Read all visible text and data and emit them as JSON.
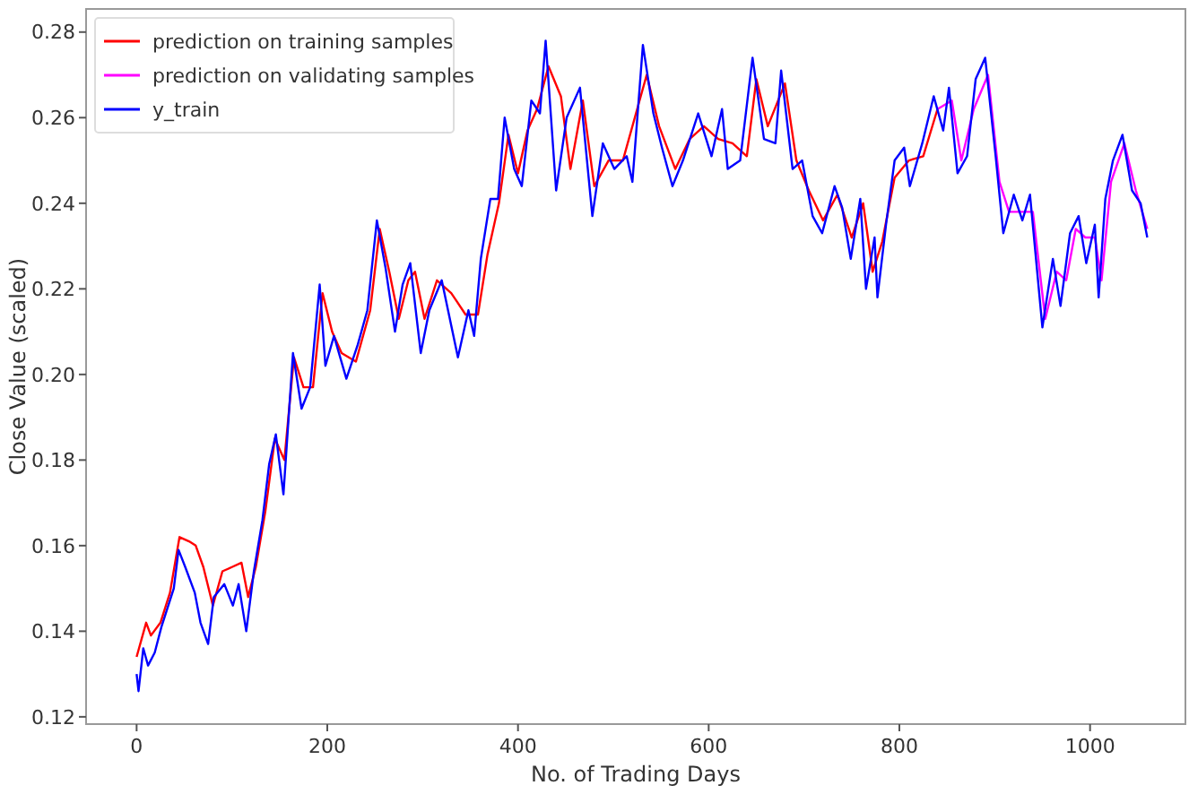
{
  "chart_data": {
    "type": "line",
    "xlabel": "No. of Trading Days",
    "ylabel": "Close Value (scaled)",
    "xlim": [
      -53,
      1100
    ],
    "ylim": [
      0.1183,
      0.2854
    ],
    "xticks": [
      0,
      200,
      400,
      600,
      800,
      1000
    ],
    "yticks": [
      {
        "value": 0.12,
        "label": "0.12"
      },
      {
        "value": 0.14,
        "label": "0.14"
      },
      {
        "value": 0.16,
        "label": "0.16"
      },
      {
        "value": 0.18,
        "label": "0.18"
      },
      {
        "value": 0.2,
        "label": "0.20"
      },
      {
        "value": 0.22,
        "label": "0.22"
      },
      {
        "value": 0.24,
        "label": "0.24"
      },
      {
        "value": 0.26,
        "label": "0.26"
      },
      {
        "value": 0.28,
        "label": "0.28"
      }
    ],
    "legend": "top left",
    "grid": false,
    "series": [
      {
        "name": "prediction on training samples",
        "color": "#ff0000",
        "x": [
          0,
          10,
          15,
          25,
          35,
          45,
          55,
          62,
          70,
          80,
          90,
          100,
          110,
          117,
          125,
          135,
          145,
          155,
          165,
          175,
          185,
          195,
          205,
          215,
          230,
          245,
          255,
          265,
          275,
          285,
          292,
          302,
          315,
          330,
          345,
          358,
          368,
          380,
          390,
          400,
          410,
          420,
          432,
          445,
          455,
          468,
          480,
          495,
          510,
          525,
          535,
          548,
          565,
          580,
          595,
          610,
          625,
          640,
          650,
          662,
          680,
          692,
          705,
          720,
          735,
          750,
          762,
          772,
          782,
          795,
          810,
          825,
          840
        ],
        "values": [
          0.134,
          0.142,
          0.139,
          0.142,
          0.149,
          0.162,
          0.161,
          0.16,
          0.155,
          0.146,
          0.154,
          0.155,
          0.156,
          0.148,
          0.155,
          0.168,
          0.185,
          0.18,
          0.204,
          0.197,
          0.197,
          0.219,
          0.21,
          0.205,
          0.203,
          0.215,
          0.234,
          0.224,
          0.213,
          0.222,
          0.224,
          0.213,
          0.222,
          0.219,
          0.214,
          0.214,
          0.228,
          0.24,
          0.256,
          0.247,
          0.257,
          0.262,
          0.272,
          0.265,
          0.248,
          0.264,
          0.244,
          0.25,
          0.25,
          0.262,
          0.27,
          0.258,
          0.248,
          0.255,
          0.258,
          0.255,
          0.254,
          0.251,
          0.269,
          0.258,
          0.268,
          0.25,
          0.243,
          0.236,
          0.242,
          0.232,
          0.24,
          0.224,
          0.231,
          0.246,
          0.25,
          0.251,
          0.262
        ]
      },
      {
        "name": "prediction on validating samples",
        "color": "#ff00ff",
        "x": [
          840,
          855,
          865,
          878,
          893,
          905,
          915,
          930,
          940,
          953,
          965,
          975,
          985,
          995,
          1005,
          1012,
          1022,
          1036,
          1048,
          1060
        ],
        "values": [
          0.262,
          0.264,
          0.25,
          0.262,
          0.27,
          0.245,
          0.238,
          0.238,
          0.238,
          0.213,
          0.224,
          0.222,
          0.234,
          0.232,
          0.232,
          0.222,
          0.245,
          0.254,
          0.243,
          0.234
        ]
      },
      {
        "name": "y_train",
        "color": "#0000ff",
        "x": [
          0,
          2,
          7,
          12,
          19,
          26,
          39,
          44,
          51,
          61,
          67,
          75,
          81,
          92,
          101,
          107,
          115,
          123,
          132,
          139,
          146,
          154,
          164,
          173,
          182,
          192,
          198,
          207,
          220,
          232,
          242,
          252,
          261,
          271,
          279,
          287,
          298,
          307,
          320,
          337,
          348,
          354,
          361,
          371,
          379,
          386,
          396,
          404,
          414,
          423,
          429,
          440,
          451,
          465,
          478,
          489,
          501,
          514,
          520,
          531,
          542,
          551,
          562,
          573,
          589,
          603,
          614,
          620,
          633,
          646,
          658,
          670,
          676,
          688,
          698,
          709,
          719,
          732,
          740,
          749,
          759,
          765,
          774,
          777,
          786,
          795,
          805,
          811,
          824,
          836,
          846,
          852,
          861,
          871,
          880,
          890,
          901,
          909,
          920,
          929,
          937,
          950,
          961,
          969,
          979,
          988,
          996,
          1005,
          1009,
          1016,
          1024,
          1034,
          1044,
          1053,
          1060
        ],
        "values": [
          0.13,
          0.126,
          0.136,
          0.132,
          0.135,
          0.141,
          0.15,
          0.159,
          0.155,
          0.149,
          0.142,
          0.137,
          0.148,
          0.151,
          0.146,
          0.151,
          0.14,
          0.154,
          0.166,
          0.179,
          0.186,
          0.172,
          0.205,
          0.192,
          0.197,
          0.221,
          0.202,
          0.209,
          0.199,
          0.207,
          0.215,
          0.236,
          0.225,
          0.21,
          0.221,
          0.226,
          0.205,
          0.215,
          0.222,
          0.204,
          0.215,
          0.209,
          0.227,
          0.241,
          0.241,
          0.26,
          0.248,
          0.244,
          0.264,
          0.261,
          0.278,
          0.243,
          0.26,
          0.267,
          0.237,
          0.254,
          0.248,
          0.251,
          0.245,
          0.277,
          0.261,
          0.253,
          0.244,
          0.25,
          0.261,
          0.251,
          0.262,
          0.248,
          0.25,
          0.274,
          0.255,
          0.254,
          0.271,
          0.248,
          0.25,
          0.237,
          0.233,
          0.244,
          0.239,
          0.227,
          0.241,
          0.22,
          0.232,
          0.218,
          0.235,
          0.25,
          0.253,
          0.244,
          0.254,
          0.265,
          0.257,
          0.267,
          0.247,
          0.251,
          0.269,
          0.274,
          0.251,
          0.233,
          0.242,
          0.236,
          0.242,
          0.211,
          0.227,
          0.216,
          0.233,
          0.237,
          0.226,
          0.235,
          0.218,
          0.241,
          0.25,
          0.256,
          0.243,
          0.24,
          0.232
        ]
      }
    ]
  }
}
